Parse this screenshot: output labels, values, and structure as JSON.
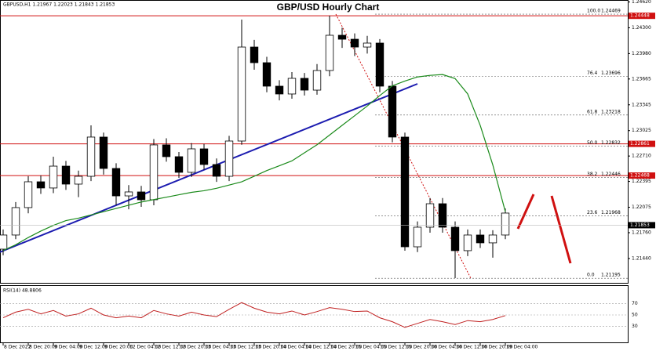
{
  "chart_data": {
    "type": "candlestick",
    "title": "GBP/USD Hourly Chart",
    "header": "GBPUSD,H1  1.21967 1.22023 1.21843 1.21853",
    "x": [
      0,
      4,
      8,
      12,
      16,
      20,
      24,
      28,
      32,
      36,
      40,
      44,
      48,
      52,
      56,
      60,
      64,
      68,
      72,
      76,
      80,
      84,
      88,
      92,
      96,
      100,
      104,
      108,
      112,
      116,
      120,
      124,
      128,
      132,
      136,
      140,
      144,
      148,
      152,
      156,
      160
    ],
    "open": [
      1.21556,
      1.21731,
      1.22071,
      1.22391,
      1.22314,
      1.22585,
      1.22362,
      1.22459,
      1.22945,
      1.22556,
      1.22216,
      1.22265,
      1.22168,
      1.22848,
      1.22702,
      1.22508,
      1.22799,
      1.22605,
      1.22459,
      1.22896,
      1.24061,
      1.23867,
      1.23576,
      1.23479,
      1.23673,
      1.23527,
      1.2377,
      1.24207,
      1.24158,
      1.24061,
      1.2411,
      1.23576,
      1.22945,
      1.21585,
      1.21828,
      1.22119,
      1.21828,
      1.21537,
      1.21731,
      1.21634,
      1.21731
    ],
    "high": [
      1.218,
      1.2214,
      1.2246,
      1.2247,
      1.22702,
      1.2265,
      1.2253,
      1.2309,
      1.23,
      1.2262,
      1.2235,
      1.2234,
      1.2292,
      1.2293,
      1.2276,
      1.2287,
      1.2286,
      1.2268,
      1.2296,
      1.24401,
      1.2415,
      1.2394,
      1.2365,
      1.2375,
      1.2374,
      1.2385,
      1.2445,
      1.243,
      1.2423,
      1.242,
      1.2416,
      1.2364,
      1.23,
      1.219,
      1.2219,
      1.2219,
      1.219,
      1.218,
      1.218,
      1.2179,
      1.2206
    ],
    "low": [
      1.2148,
      1.2168,
      1.22,
      1.2224,
      1.2225,
      1.2229,
      1.222,
      1.224,
      1.2248,
      1.221,
      1.2205,
      1.2208,
      1.221,
      1.2264,
      1.2244,
      1.2245,
      1.2254,
      1.2239,
      1.224,
      1.2285,
      1.2378,
      1.235,
      1.234,
      1.2342,
      1.2346,
      1.2347,
      1.237,
      1.2405,
      1.2395,
      1.2398,
      1.235,
      1.2288,
      1.21537,
      1.2152,
      1.2176,
      1.2176,
      1.21197,
      1.2147,
      1.2157,
      1.2145,
      1.2168
    ],
    "close": [
      1.21731,
      1.22071,
      1.22391,
      1.22314,
      1.22585,
      1.22362,
      1.22459,
      1.22945,
      1.22556,
      1.22216,
      1.22265,
      1.22168,
      1.22848,
      1.22702,
      1.22508,
      1.22799,
      1.22605,
      1.22459,
      1.22896,
      1.24061,
      1.23867,
      1.23576,
      1.23479,
      1.23673,
      1.23527,
      1.2377,
      1.24207,
      1.24158,
      1.24061,
      1.2411,
      1.23576,
      1.22945,
      1.21585,
      1.21828,
      1.22119,
      1.21828,
      1.21537,
      1.21731,
      1.21634,
      1.21731,
      1.22003
    ],
    "ma": {
      "color": "#1a8a1a",
      "values": [
        1.2154,
        1.2161,
        1.217,
        1.2178,
        1.2185,
        1.2191,
        1.2194,
        1.2198,
        1.2202,
        1.2206,
        1.221,
        1.2214,
        1.2217,
        1.222,
        1.2223,
        1.2226,
        1.2228,
        1.2231,
        1.2235,
        1.2239,
        1.2246,
        1.2253,
        1.2259,
        1.2265,
        1.2275,
        1.2285,
        1.2297,
        1.2309,
        1.2321,
        1.2333,
        1.2346,
        1.2358,
        1.2364,
        1.2369,
        1.2371,
        1.2372,
        1.2367,
        1.2348,
        1.2309,
        1.226,
        1.2202
      ]
    },
    "trendline": {
      "color": "#1c1cb0",
      "x": [
        -1,
        132
      ],
      "values": [
        1.2152,
        1.23605
      ]
    },
    "levels": [
      1.24448,
      1.22861,
      1.22468
    ],
    "level_color": "#d01010",
    "current_price": 1.21853,
    "fib": {
      "x": [
        106,
        149
      ],
      "levels": [
        "100.0",
        "76.4",
        "61.8",
        "50.0",
        "38.2",
        "23.6",
        "0.0"
      ],
      "prices": [
        1.24469,
        1.23696,
        1.23218,
        1.22832,
        1.22446,
        1.21968,
        1.21195
      ]
    },
    "xlim": [
      -1,
      199
    ],
    "ylim": [
      1.21148,
      1.24644
    ],
    "yticks": [
      {
        "value": 1.2462,
        "label": "1.24620"
      },
      {
        "value": 1.243,
        "label": "1.24300"
      },
      {
        "value": 1.2398,
        "label": "1.23980"
      },
      {
        "value": 1.23665,
        "label": "1.23665"
      },
      {
        "value": 1.23345,
        "label": "1.23345"
      },
      {
        "value": 1.23025,
        "label": "1.23025"
      },
      {
        "value": 1.2271,
        "label": "1.22710"
      },
      {
        "value": 1.22395,
        "label": "1.22395"
      },
      {
        "value": 1.22075,
        "label": "1.22075"
      },
      {
        "value": 1.2176,
        "label": "1.21760"
      },
      {
        "value": 1.2144,
        "label": "1.21440"
      }
    ],
    "xticks": [
      {
        "value": 0,
        "label": "8 Dec 2022"
      },
      {
        "value": 8,
        "label": "8 Dec 20:00"
      },
      {
        "value": 16,
        "label": "9 Dec 04:00"
      },
      {
        "value": 24,
        "label": "9 Dec 12:00"
      },
      {
        "value": 32,
        "label": "9 Dec 20:00"
      },
      {
        "value": 40,
        "label": "12 Dec 04:00"
      },
      {
        "value": 48,
        "label": "12 Dec 12:00"
      },
      {
        "value": 56,
        "label": "12 Dec 20:00"
      },
      {
        "value": 64,
        "label": "13 Dec 04:00"
      },
      {
        "value": 72,
        "label": "13 Dec 12:00"
      },
      {
        "value": 80,
        "label": "13 Dec 20:00"
      },
      {
        "value": 88,
        "label": "14 Dec 04:00"
      },
      {
        "value": 96,
        "label": "14 Dec 12:00"
      },
      {
        "value": 104,
        "label": "14 Dec 20:00"
      },
      {
        "value": 112,
        "label": "15 Dec 04:00"
      },
      {
        "value": 120,
        "label": "15 Dec 12:00"
      },
      {
        "value": 128,
        "label": "15 Dec 20:00"
      },
      {
        "value": 136,
        "label": "16 Dec 04:00"
      },
      {
        "value": 144,
        "label": "16 Dec 12:00"
      },
      {
        "value": 152,
        "label": "16 Dec 20:00"
      },
      {
        "value": 160,
        "label": "19 Dec 04:00"
      }
    ],
    "rsi": {
      "label": "RSI(14) 48.8806",
      "color": "#c02020",
      "ylim": [
        0,
        100
      ],
      "yticks": [
        30,
        50,
        70
      ],
      "values": [
        45,
        55,
        60,
        52,
        58,
        48,
        52,
        62,
        50,
        45,
        48,
        45,
        58,
        52,
        48,
        55,
        50,
        47,
        60,
        72,
        62,
        55,
        52,
        57,
        50,
        56,
        63,
        60,
        56,
        57,
        45,
        38,
        28,
        35,
        42,
        38,
        33,
        40,
        38,
        42,
        48.8806
      ]
    }
  }
}
